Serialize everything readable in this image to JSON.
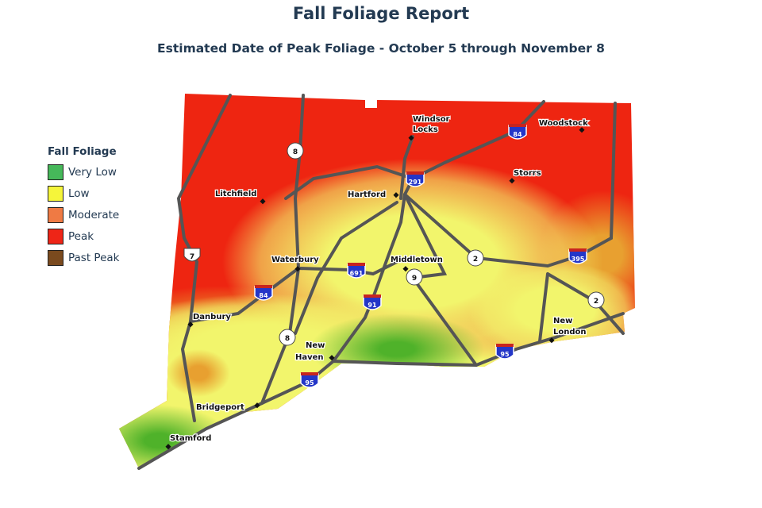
{
  "title": "Fall Foliage Report",
  "subtitle": "Estimated Date of Peak Foliage - October 5 through November 8",
  "legend": {
    "title": "Fall Foliage",
    "items": [
      {
        "label": "Very Low",
        "color": "#46b85a"
      },
      {
        "label": "Low",
        "color": "#f5f53a"
      },
      {
        "label": "Moderate",
        "color": "#ef7a44"
      },
      {
        "label": "Peak",
        "color": "#ee2517"
      },
      {
        "label": "Past Peak",
        "color": "#7a4a1e"
      }
    ]
  },
  "cities": [
    "Windsor Locks",
    "Woodstock",
    "Storrs",
    "Litchfield",
    "Hartford",
    "Waterbury",
    "Middletown",
    "Danbury",
    "New Haven",
    "New London",
    "Bridgeport",
    "Stamford"
  ],
  "highways": {
    "interstates": [
      "84",
      "291",
      "691",
      "84",
      "91",
      "395",
      "95",
      "95"
    ],
    "routes": [
      "8",
      "7",
      "2",
      "9",
      "2",
      "8"
    ]
  }
}
